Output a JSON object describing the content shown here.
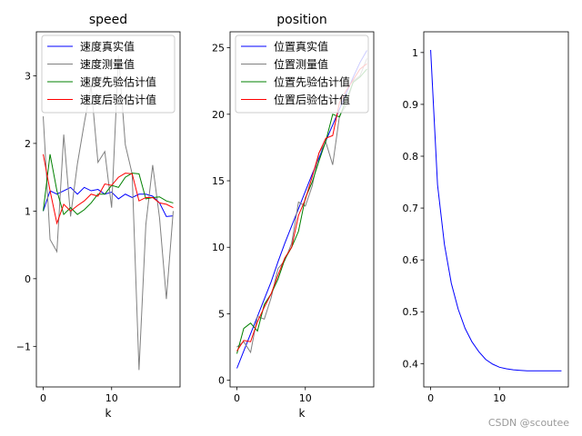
{
  "watermark": "CSDN @scoutee",
  "colors": {
    "true": "#0000ff",
    "measured": "#808080",
    "prior": "#008000",
    "posterior": "#ff0000"
  },
  "chart_data": [
    {
      "type": "line",
      "title": "speed",
      "xlabel": "k",
      "ylabel": "",
      "xlim": [
        -1,
        20
      ],
      "ylim": [
        -1.6,
        3.65
      ],
      "xticks": [
        0,
        10
      ],
      "yticks": [
        -1,
        0,
        1,
        2,
        3
      ],
      "legend": "top-left",
      "x": [
        0,
        1,
        2,
        3,
        4,
        5,
        6,
        7,
        8,
        9,
        10,
        11,
        12,
        13,
        14,
        15,
        16,
        17,
        18,
        19
      ],
      "series": [
        {
          "name": "速度真实值",
          "color": "#0000ff",
          "values": [
            1.0,
            1.3,
            1.25,
            1.3,
            1.35,
            1.25,
            1.35,
            1.3,
            1.32,
            1.25,
            1.28,
            1.18,
            1.25,
            1.2,
            1.25,
            1.25,
            1.22,
            1.12,
            0.92,
            0.93
          ]
        },
        {
          "name": "速度测量值",
          "color": "#808080",
          "values": [
            2.4,
            0.58,
            0.4,
            2.13,
            0.92,
            1.7,
            2.3,
            2.85,
            1.72,
            1.88,
            1.05,
            3.3,
            1.98,
            1.55,
            -1.35,
            0.8,
            1.68,
            0.9,
            -0.3,
            1.0
          ]
        },
        {
          "name": "速度先验估计值",
          "color": "#008000",
          "values": [
            1.0,
            1.84,
            1.3,
            0.95,
            1.05,
            0.95,
            1.02,
            1.12,
            1.25,
            1.25,
            1.38,
            1.35,
            1.5,
            1.56,
            1.55,
            1.18,
            1.2,
            1.21,
            1.15,
            1.12
          ]
        },
        {
          "name": "速度后验估计值",
          "color": "#ff0000",
          "values": [
            1.84,
            1.3,
            0.82,
            1.1,
            1.0,
            1.08,
            1.15,
            1.25,
            1.22,
            1.4,
            1.38,
            1.5,
            1.56,
            1.55,
            1.15,
            1.2,
            1.2,
            1.12,
            1.1,
            1.05
          ]
        }
      ]
    },
    {
      "type": "line",
      "title": "position",
      "xlabel": "k",
      "ylabel": "",
      "xlim": [
        -1,
        20
      ],
      "ylim": [
        -0.5,
        26.2
      ],
      "xticks": [
        0,
        10
      ],
      "yticks": [
        0,
        5,
        10,
        15,
        20,
        25
      ],
      "legend": "top-left",
      "x": [
        0,
        1,
        2,
        3,
        4,
        5,
        6,
        7,
        8,
        9,
        10,
        11,
        12,
        13,
        14,
        15,
        16,
        17,
        18,
        19
      ],
      "series": [
        {
          "name": "位置真实值",
          "color": "#0000ff",
          "values": [
            0.9,
            2.2,
            3.5,
            4.8,
            6.1,
            7.4,
            8.9,
            10.3,
            11.6,
            12.9,
            14.2,
            15.5,
            16.7,
            18.0,
            19.2,
            20.4,
            21.6,
            22.8,
            23.9,
            24.8
          ]
        },
        {
          "name": "位置测量值",
          "color": "#808080",
          "values": [
            2.5,
            2.9,
            2.1,
            4.8,
            4.6,
            6.2,
            8.4,
            9.0,
            10.3,
            13.4,
            13.1,
            14.6,
            17.1,
            17.9,
            16.2,
            19.9,
            20.7,
            22.5,
            22.9,
            24.2
          ]
        },
        {
          "name": "位置先验估计值",
          "color": "#008000",
          "values": [
            2.0,
            3.9,
            4.3,
            3.7,
            5.7,
            6.5,
            7.6,
            9.1,
            10.0,
            11.2,
            13.7,
            14.9,
            16.5,
            18.0,
            20.0,
            19.8,
            21.1,
            22.4,
            22.8,
            23.4
          ]
        },
        {
          "name": "位置后验估计值",
          "color": "#ff0000",
          "values": [
            2.2,
            3.0,
            2.9,
            4.4,
            5.5,
            6.5,
            7.9,
            9.2,
            10.0,
            12.4,
            13.6,
            15.3,
            17.1,
            18.2,
            18.4,
            20.9,
            21.8,
            22.6,
            23.4,
            23.8
          ]
        }
      ]
    },
    {
      "type": "line",
      "title": "",
      "xlabel": "",
      "ylabel": "",
      "xlim": [
        -1,
        20
      ],
      "ylim": [
        0.355,
        1.04
      ],
      "xticks": [
        0,
        10
      ],
      "yticks": [
        0.4,
        0.5,
        0.6,
        0.7,
        0.8,
        0.9,
        1.0
      ],
      "legend": "none",
      "x": [
        0,
        1,
        2,
        3,
        4,
        5,
        6,
        7,
        8,
        9,
        10,
        11,
        12,
        13,
        14,
        15,
        16,
        17,
        18,
        19
      ],
      "series": [
        {
          "name": "",
          "color": "#0000ff",
          "values": [
            1.005,
            0.745,
            0.63,
            0.555,
            0.505,
            0.468,
            0.442,
            0.423,
            0.408,
            0.399,
            0.393,
            0.39,
            0.388,
            0.387,
            0.386,
            0.386,
            0.386,
            0.386,
            0.386,
            0.386
          ]
        }
      ]
    }
  ]
}
